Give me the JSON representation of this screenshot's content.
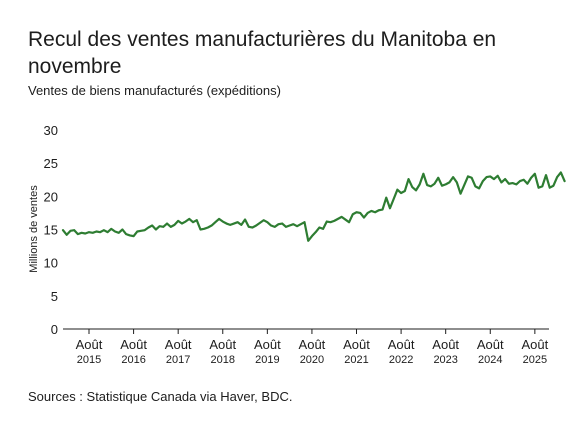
{
  "title": "Recul des ventes manufacturières du Manitoba en novembre",
  "subtitle": "Ventes de biens manufacturés (expéditions)",
  "source": "Sources : Statistique Canada via Haver, BDC.",
  "colors": {
    "line": "#2e7d32",
    "axis": "#1d1d1d",
    "text": "#1d1d1d"
  },
  "chart_data": {
    "type": "line",
    "ylabel": "Millions de ventes",
    "ylim": [
      0,
      30
    ],
    "yticks": [
      0,
      5,
      10,
      15,
      20,
      25,
      30
    ],
    "grid": false,
    "x_tick_labels": [
      {
        "month": "Août",
        "year": "2015"
      },
      {
        "month": "Août",
        "year": "2016"
      },
      {
        "month": "Août",
        "year": "2017"
      },
      {
        "month": "Août",
        "year": "2018"
      },
      {
        "month": "Août",
        "year": "2019"
      },
      {
        "month": "Août",
        "year": "2020"
      },
      {
        "month": "Août",
        "year": "2021"
      },
      {
        "month": "Août",
        "year": "2022"
      },
      {
        "month": "Août",
        "year": "2023"
      },
      {
        "month": "Août",
        "year": "2024"
      },
      {
        "month": "Août",
        "year": "2025"
      }
    ],
    "series": [
      {
        "start": "2015-01",
        "end": "2025-11",
        "values": [
          14.9,
          14.2,
          14.8,
          14.9,
          14.3,
          14.5,
          14.4,
          14.6,
          14.5,
          14.7,
          14.6,
          14.9,
          14.6,
          15.1,
          14.7,
          14.5,
          15.0,
          14.3,
          14.1,
          14.0,
          14.7,
          14.8,
          14.9,
          15.3,
          15.6,
          15.0,
          15.5,
          15.4,
          15.9,
          15.4,
          15.7,
          16.3,
          15.9,
          16.2,
          16.6,
          16.1,
          16.4,
          15.0,
          15.1,
          15.3,
          15.6,
          16.1,
          16.6,
          16.2,
          15.9,
          15.7,
          15.9,
          16.1,
          15.7,
          16.5,
          15.4,
          15.3,
          15.6,
          16.0,
          16.4,
          16.1,
          15.6,
          15.4,
          15.8,
          15.9,
          15.4,
          15.6,
          15.8,
          15.5,
          15.8,
          16.1,
          13.3,
          14.0,
          14.6,
          15.3,
          15.1,
          16.2,
          16.1,
          16.3,
          16.6,
          16.9,
          16.5,
          16.1,
          17.3,
          17.6,
          17.5,
          16.8,
          17.5,
          17.8,
          17.6,
          17.9,
          18.0,
          19.8,
          18.2,
          19.6,
          21.0,
          20.5,
          20.8,
          22.6,
          21.4,
          20.9,
          21.8,
          23.4,
          21.7,
          21.5,
          21.9,
          22.8,
          21.6,
          21.8,
          22.1,
          22.9,
          22.1,
          20.4,
          21.7,
          23.0,
          22.8,
          21.5,
          21.2,
          22.3,
          22.9,
          23.0,
          22.6,
          23.1,
          22.1,
          22.6,
          21.9,
          22.0,
          21.8,
          22.3,
          22.5,
          21.9,
          22.8,
          23.4,
          21.3,
          21.5,
          23.2,
          21.3,
          21.6,
          22.9,
          23.6,
          22.3
        ]
      }
    ]
  }
}
